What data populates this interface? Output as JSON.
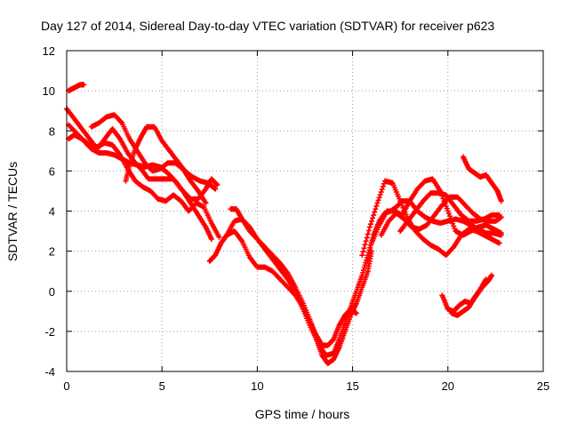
{
  "chart_data": {
    "type": "scatter",
    "title": "Day 127 of 2014, Sidereal Day-to-day VTEC variation (SDTVAR) for receiver p623",
    "xlabel": "GPS time / hours",
    "ylabel": "SDTVAR / TECUs",
    "xlim": [
      0,
      25
    ],
    "ylim": [
      -4,
      12
    ],
    "x_ticks": [
      0,
      5,
      10,
      15,
      20,
      25
    ],
    "y_ticks": [
      -4,
      -2,
      0,
      2,
      4,
      6,
      8,
      10,
      12
    ],
    "x_tick_labels": [
      "0",
      "5",
      "10",
      "15",
      "20",
      "25"
    ],
    "y_tick_labels": [
      "-4",
      "-2",
      "0",
      "2",
      "4",
      "6",
      "8",
      "10",
      "12"
    ],
    "grid": true,
    "grid_style": "dotted",
    "legend": "none",
    "marker": "+",
    "color": "#ff0000",
    "series": [
      {
        "x": [
          0.1,
          0.3,
          0.5,
          0.7,
          0.9
        ],
        "y": [
          10.0,
          10.1,
          10.2,
          10.3,
          10.3
        ]
      },
      {
        "x": [
          0.0,
          0.4,
          0.8,
          1.2,
          1.6,
          2.0,
          2.4,
          2.8,
          3.2,
          3.6,
          3.9,
          4.3,
          4.8,
          5.2,
          5.6,
          6.0,
          6.5,
          6.9,
          7.3,
          7.6,
          7.9
        ],
        "y": [
          9.1,
          8.6,
          8.1,
          7.6,
          7.1,
          7.6,
          8.1,
          7.6,
          6.9,
          6.4,
          6.1,
          5.6,
          5.6,
          5.6,
          5.6,
          5.1,
          4.6,
          4.6,
          5.1,
          5.6,
          5.3
        ]
      },
      {
        "x": [
          0.1,
          0.5,
          0.9,
          1.3,
          1.7,
          2.1,
          2.5,
          2.9,
          3.3,
          3.7,
          4.1,
          4.5,
          4.9,
          5.3,
          5.7,
          6.1,
          6.5,
          6.9,
          7.3,
          7.6
        ],
        "y": [
          8.3,
          7.9,
          7.5,
          7.1,
          6.9,
          6.9,
          6.8,
          6.6,
          6.4,
          6.3,
          6.2,
          6.3,
          6.2,
          5.9,
          5.5,
          5.0,
          4.4,
          3.8,
          3.2,
          2.6
        ]
      },
      {
        "x": [
          0.1,
          0.4,
          0.8,
          1.2,
          1.6,
          2.0,
          2.4,
          2.8,
          3.2,
          3.6,
          4.0,
          4.4,
          4.8,
          5.2,
          5.6,
          6.0,
          6.4,
          6.8,
          7.2,
          7.6,
          8.0
        ],
        "y": [
          7.6,
          7.8,
          7.6,
          7.3,
          7.2,
          7.4,
          7.3,
          6.8,
          6.1,
          5.5,
          5.2,
          5.0,
          4.6,
          4.5,
          4.8,
          4.5,
          4.0,
          4.4,
          4.2,
          3.4,
          2.7
        ]
      },
      {
        "x": [
          1.3,
          1.7,
          2.1,
          2.5,
          2.9,
          3.3,
          3.7,
          4.1,
          4.5,
          4.9,
          5.3,
          5.7,
          6.1,
          6.5,
          6.9,
          7.3
        ],
        "y": [
          8.2,
          8.4,
          8.7,
          8.8,
          8.4,
          7.6,
          7.0,
          6.4,
          6.0,
          6.1,
          6.4,
          6.4,
          6.1,
          5.5,
          5.0,
          4.4
        ]
      },
      {
        "x": [
          3.1,
          3.3,
          3.6,
          3.9,
          4.2,
          4.6,
          5.0,
          5.4,
          5.8,
          6.2,
          6.6,
          7.0,
          7.4,
          7.8
        ],
        "y": [
          5.5,
          6.3,
          7.1,
          7.7,
          8.2,
          8.2,
          7.5,
          7.0,
          6.5,
          6.0,
          5.7,
          5.5,
          5.4,
          5.1
        ]
      },
      {
        "x": [
          7.5,
          7.8,
          8.1,
          8.4,
          8.8,
          9.2,
          9.6,
          10.0,
          10.4,
          10.8,
          11.2,
          11.6,
          12.0,
          12.4,
          12.8,
          13.1,
          13.4,
          13.7,
          14.0,
          14.3,
          14.6,
          14.9,
          15.2
        ],
        "y": [
          1.5,
          1.8,
          2.4,
          2.8,
          3.0,
          2.5,
          1.7,
          1.2,
          1.2,
          1.0,
          0.6,
          0.2,
          -0.2,
          -0.8,
          -1.6,
          -2.2,
          -2.7,
          -2.7,
          -2.4,
          -1.7,
          -1.2,
          -0.9,
          -1.1
        ]
      },
      {
        "x": [
          8.4,
          8.8,
          9.2,
          9.6,
          10.0,
          10.4,
          10.8,
          11.2,
          11.6,
          12.0,
          12.4,
          12.8,
          13.1,
          13.4,
          13.7,
          14.0,
          14.3,
          14.6,
          14.9,
          15.2,
          15.5,
          15.8,
          16.0
        ],
        "y": [
          2.8,
          3.5,
          3.6,
          3.2,
          2.6,
          2.2,
          1.8,
          1.4,
          0.9,
          0.2,
          -0.6,
          -1.5,
          -2.4,
          -3.2,
          -3.6,
          -3.4,
          -2.8,
          -2.0,
          -1.2,
          -0.6,
          0.2,
          1.0,
          2.0
        ]
      },
      {
        "x": [
          8.6,
          8.9,
          9.2,
          9.6,
          10.0,
          10.4,
          10.8,
          11.2,
          11.6,
          12.0,
          12.4,
          12.8,
          13.2,
          13.6,
          14.0,
          14.3,
          14.6,
          14.9,
          15.2,
          15.5,
          15.8,
          16.1,
          16.4,
          16.7,
          17.0,
          17.3,
          17.6,
          18.0,
          18.4,
          18.8,
          19.2,
          19.6,
          20.0,
          20.4,
          20.8,
          21.2,
          21.6,
          22.0,
          22.4,
          22.8
        ],
        "y": [
          4.1,
          4.1,
          3.6,
          3.0,
          2.6,
          2.1,
          1.6,
          1.1,
          0.6,
          0.0,
          -0.9,
          -1.8,
          -2.6,
          -3.2,
          -3.1,
          -2.4,
          -1.6,
          -0.8,
          0.0,
          0.8,
          1.8,
          2.8,
          3.5,
          3.9,
          4.0,
          4.2,
          4.5,
          4.5,
          4.0,
          3.7,
          3.5,
          3.4,
          3.5,
          3.6,
          3.5,
          3.3,
          3.1,
          2.9,
          2.9,
          2.8
        ]
      },
      {
        "x": [
          15.5,
          15.9,
          16.3,
          16.7,
          17.1,
          17.5,
          17.9,
          18.3,
          18.7,
          19.1,
          19.5,
          19.9,
          20.3,
          20.7,
          21.1,
          21.5,
          21.9,
          22.3,
          22.7
        ],
        "y": [
          1.8,
          3.2,
          4.4,
          5.5,
          5.4,
          4.5,
          3.6,
          3.0,
          2.6,
          2.3,
          2.1,
          1.8,
          2.2,
          2.8,
          3.1,
          3.0,
          2.8,
          2.6,
          2.4
        ]
      },
      {
        "x": [
          16.0,
          16.4,
          16.8,
          17.2,
          17.6,
          18.0,
          18.4,
          18.8,
          19.2,
          19.6,
          20.0,
          20.4,
          20.8,
          21.2,
          21.6,
          22.0,
          22.4,
          22.8
        ],
        "y": [
          2.4,
          3.3,
          4.0,
          4.0,
          3.8,
          4.5,
          5.1,
          5.5,
          5.6,
          5.0,
          4.0,
          3.0,
          2.8,
          3.0,
          3.2,
          3.3,
          3.1,
          2.9
        ]
      },
      {
        "x": [
          16.5,
          16.9,
          17.3,
          17.7,
          18.1,
          18.5,
          18.9,
          19.3,
          19.7,
          20.1,
          20.5,
          20.9,
          21.3,
          21.7,
          22.1,
          22.5,
          22.8
        ],
        "y": [
          2.8,
          3.5,
          3.9,
          3.6,
          3.2,
          3.1,
          3.3,
          3.8,
          4.3,
          4.7,
          4.7,
          4.3,
          3.9,
          3.6,
          3.5,
          3.5,
          3.7
        ]
      },
      {
        "x": [
          17.5,
          17.9,
          18.3,
          18.7,
          19.1,
          19.5,
          19.9,
          20.3,
          20.7,
          21.1,
          21.5,
          21.9,
          22.3,
          22.7
        ],
        "y": [
          3.0,
          3.5,
          4.0,
          4.5,
          4.9,
          4.9,
          4.8,
          4.3,
          3.8,
          3.5,
          3.5,
          3.6,
          3.8,
          3.8
        ]
      },
      {
        "x": [
          20.8,
          21.1,
          21.4,
          21.7,
          22.0,
          22.3,
          22.6,
          22.8
        ],
        "y": [
          6.7,
          6.1,
          5.9,
          5.7,
          5.8,
          5.4,
          5.0,
          4.5
        ]
      },
      {
        "x": [
          19.7,
          20.0,
          20.3,
          20.6,
          20.9,
          21.2,
          21.5,
          21.8,
          22.1,
          22.3
        ],
        "y": [
          -0.2,
          -0.9,
          -1.0,
          -0.7,
          -0.5,
          -0.6,
          -0.2,
          0.2,
          0.5,
          0.8
        ]
      },
      {
        "x": [
          20.2,
          20.5,
          20.8,
          21.1,
          21.4,
          21.7,
          22.0
        ],
        "y": [
          -1.1,
          -1.2,
          -1.0,
          -0.8,
          -0.3,
          0.1,
          0.6
        ]
      }
    ]
  }
}
